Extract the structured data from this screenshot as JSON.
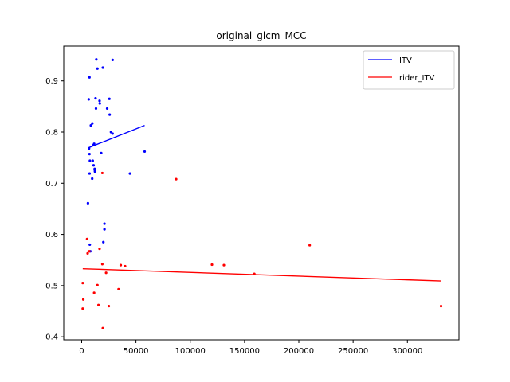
{
  "chart_data": {
    "type": "scatter",
    "title": "original_glcm_MCC",
    "xlabel": "",
    "ylabel": "",
    "xlim": [
      -16500,
      347500
    ],
    "ylim": [
      0.394,
      0.968
    ],
    "xticks": [
      0,
      50000,
      100000,
      150000,
      200000,
      250000,
      300000
    ],
    "yticks": [
      0.4,
      0.5,
      0.6,
      0.7,
      0.8,
      0.9
    ],
    "grid": false,
    "legend_position": "upper right",
    "series": [
      {
        "name": "ITV",
        "color": "#0000ff",
        "points": [
          [
            5800,
            0.661
          ],
          [
            7200,
            0.907
          ],
          [
            6500,
            0.864
          ],
          [
            13500,
            0.942
          ],
          [
            28500,
            0.941
          ],
          [
            14500,
            0.924
          ],
          [
            19500,
            0.926
          ],
          [
            12800,
            0.866
          ],
          [
            25500,
            0.865
          ],
          [
            16500,
            0.861
          ],
          [
            16700,
            0.856
          ],
          [
            13200,
            0.846
          ],
          [
            23500,
            0.846
          ],
          [
            25800,
            0.834
          ],
          [
            9800,
            0.817
          ],
          [
            8500,
            0.813
          ],
          [
            27000,
            0.8
          ],
          [
            28500,
            0.797
          ],
          [
            11500,
            0.777
          ],
          [
            11000,
            0.775
          ],
          [
            6800,
            0.768
          ],
          [
            18000,
            0.759
          ],
          [
            7200,
            0.757
          ],
          [
            7600,
            0.744
          ],
          [
            10200,
            0.744
          ],
          [
            11000,
            0.735
          ],
          [
            12000,
            0.728
          ],
          [
            12200,
            0.724
          ],
          [
            12400,
            0.722
          ],
          [
            7300,
            0.719
          ],
          [
            44500,
            0.719
          ],
          [
            9700,
            0.709
          ],
          [
            58000,
            0.762
          ],
          [
            21000,
            0.621
          ],
          [
            21000,
            0.61
          ],
          [
            20000,
            0.585
          ],
          [
            7500,
            0.58
          ],
          [
            8000,
            0.567
          ]
        ],
        "trend": [
          [
            5800,
            0.769
          ],
          [
            58000,
            0.813
          ]
        ]
      },
      {
        "name": "rider_ITV",
        "color": "#ff0000",
        "points": [
          [
            5000,
            0.591
          ],
          [
            5500,
            0.563
          ],
          [
            7000,
            0.567
          ],
          [
            16500,
            0.572
          ],
          [
            19000,
            0.72
          ],
          [
            87000,
            0.708
          ],
          [
            210000,
            0.579
          ],
          [
            19000,
            0.542
          ],
          [
            36000,
            0.54
          ],
          [
            40000,
            0.538
          ],
          [
            120000,
            0.541
          ],
          [
            131000,
            0.54
          ],
          [
            159000,
            0.523
          ],
          [
            22500,
            0.525
          ],
          [
            1000,
            0.505
          ],
          [
            14500,
            0.501
          ],
          [
            34000,
            0.493
          ],
          [
            11500,
            0.486
          ],
          [
            1500,
            0.473
          ],
          [
            15500,
            0.462
          ],
          [
            25000,
            0.46
          ],
          [
            1000,
            0.455
          ],
          [
            19500,
            0.417
          ],
          [
            331000,
            0.46
          ]
        ],
        "trend": [
          [
            1000,
            0.533
          ],
          [
            331000,
            0.509
          ]
        ]
      }
    ]
  }
}
